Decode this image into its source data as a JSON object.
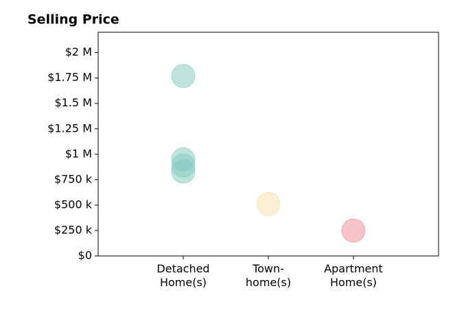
{
  "chart_data": {
    "type": "scatter",
    "title": "Selling Price",
    "categories": [
      "Detached\nHome(s)",
      "Town-\nhome(s)",
      "Apartment\nHome(s)"
    ],
    "xlim": [
      -1,
      3
    ],
    "ylim": [
      0,
      2200000
    ],
    "yticks": [
      {
        "value": 0,
        "label": "$0"
      },
      {
        "value": 250000,
        "label": "$250 k"
      },
      {
        "value": 500000,
        "label": "$500 k"
      },
      {
        "value": 750000,
        "label": "$750 k"
      },
      {
        "value": 1000000,
        "label": "$1 M"
      },
      {
        "value": 1250000,
        "label": "$1.25 M"
      },
      {
        "value": 1500000,
        "label": "$1.5 M"
      },
      {
        "value": 1750000,
        "label": "$1.75 M"
      },
      {
        "value": 2000000,
        "label": "$2 M"
      }
    ],
    "points": [
      {
        "x": 0,
        "y": 1770000,
        "color": "#7fc9bd"
      },
      {
        "x": 0,
        "y": 950000,
        "color": "#7fc9bd"
      },
      {
        "x": 0,
        "y": 890000,
        "color": "#7fc9bd"
      },
      {
        "x": 0,
        "y": 830000,
        "color": "#7fc9bd"
      },
      {
        "x": 1,
        "y": 510000,
        "color": "#f5dfa6"
      },
      {
        "x": 2,
        "y": 250000,
        "color": "#f08a94"
      }
    ]
  }
}
